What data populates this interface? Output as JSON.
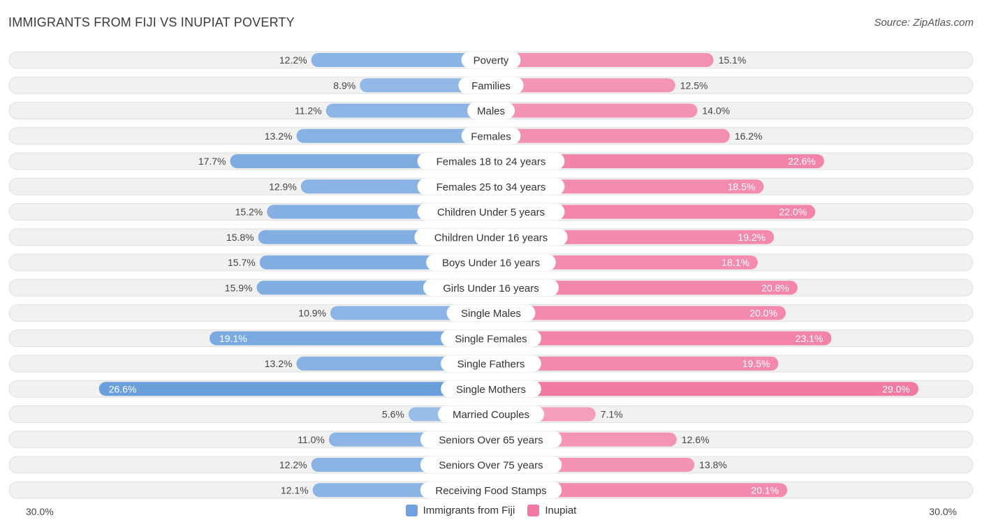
{
  "title": "IMMIGRANTS FROM FIJI VS INUPIAT POVERTY",
  "source": "Source: ZipAtlas.com",
  "axis": {
    "left_label": "30.0%",
    "right_label": "30.0%"
  },
  "legend": {
    "left": {
      "label": "Immigrants from Fiji",
      "color": "#6fa2de"
    },
    "right": {
      "label": "Inupiat",
      "color": "#f07aa0"
    }
  },
  "colors": {
    "left_strong": "#6a9fdc",
    "left_light": "#a9c8ec",
    "right_strong": "#f17aa0",
    "right_light": "#f6aac3",
    "track": "#f1f1f1",
    "track_border": "#e0e0e0"
  },
  "chart_data": {
    "type": "bar",
    "orientation": "horizontal-diverging",
    "xlim": [
      -30,
      30
    ],
    "unit": "%",
    "categories": [
      "Poverty",
      "Families",
      "Males",
      "Females",
      "Females 18 to 24 years",
      "Females 25 to 34 years",
      "Children Under 5 years",
      "Children Under 16 years",
      "Boys Under 16 years",
      "Girls Under 16 years",
      "Single Males",
      "Single Females",
      "Single Fathers",
      "Single Mothers",
      "Married Couples",
      "Seniors Over 65 years",
      "Seniors Over 75 years",
      "Receiving Food Stamps"
    ],
    "series": [
      {
        "name": "Immigrants from Fiji",
        "values": [
          12.2,
          8.9,
          11.2,
          13.2,
          17.7,
          12.9,
          15.2,
          15.8,
          15.7,
          15.9,
          10.9,
          19.1,
          13.2,
          26.6,
          5.6,
          11.0,
          12.2,
          12.1
        ],
        "labels": [
          "12.2%",
          "8.9%",
          "11.2%",
          "13.2%",
          "17.7%",
          "12.9%",
          "15.2%",
          "15.8%",
          "15.7%",
          "15.9%",
          "10.9%",
          "19.1%",
          "13.2%",
          "26.6%",
          "5.6%",
          "11.0%",
          "12.2%",
          "12.1%"
        ]
      },
      {
        "name": "Inupiat",
        "values": [
          15.1,
          12.5,
          14.0,
          16.2,
          22.6,
          18.5,
          22.0,
          19.2,
          18.1,
          20.8,
          20.0,
          23.1,
          19.5,
          29.0,
          7.1,
          12.6,
          13.8,
          20.1
        ],
        "labels": [
          "15.1%",
          "12.5%",
          "14.0%",
          "16.2%",
          "22.6%",
          "18.5%",
          "22.0%",
          "19.2%",
          "18.1%",
          "20.8%",
          "20.0%",
          "23.1%",
          "19.5%",
          "29.0%",
          "7.1%",
          "12.6%",
          "13.8%",
          "20.1%"
        ]
      }
    ]
  }
}
